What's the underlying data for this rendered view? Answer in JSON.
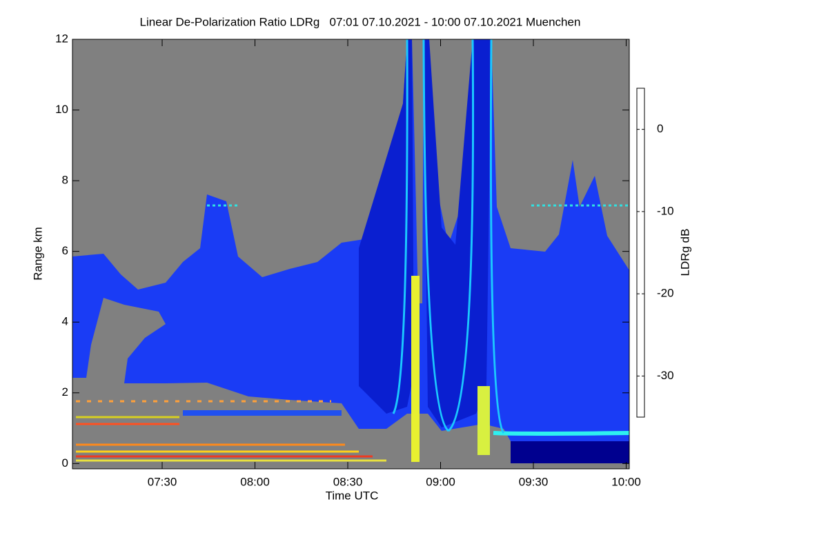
{
  "chart_data": {
    "type": "heatmap",
    "title": "Linear De-Polarization Ratio LDRg   07:01 07.10.2021 - 10:00 07.10.2021 Muenchen",
    "x_label": "Time UTC",
    "y_label": "Range km",
    "xlim": [
      421,
      601
    ],
    "xticks": [
      {
        "value": 450,
        "label": "07:30"
      },
      {
        "value": 480,
        "label": "08:00"
      },
      {
        "value": 510,
        "label": "08:30"
      },
      {
        "value": 540,
        "label": "09:00"
      },
      {
        "value": 570,
        "label": "09:30"
      },
      {
        "value": 600,
        "label": "10:00"
      }
    ],
    "ylim": [
      -0.15,
      12
    ],
    "yticks": [
      0,
      2,
      4,
      6,
      8,
      10,
      12
    ],
    "colorbar_label": "LDRg dB",
    "clim": [
      -35,
      5
    ],
    "cticks": [
      0,
      -10,
      -20,
      -30
    ],
    "colormap": [
      "#00008f",
      "#0000ff",
      "#0080ff",
      "#00ffff",
      "#80ff80",
      "#ffff00",
      "#ff8000",
      "#ff0000",
      "#800000"
    ],
    "background": "#808080"
  }
}
